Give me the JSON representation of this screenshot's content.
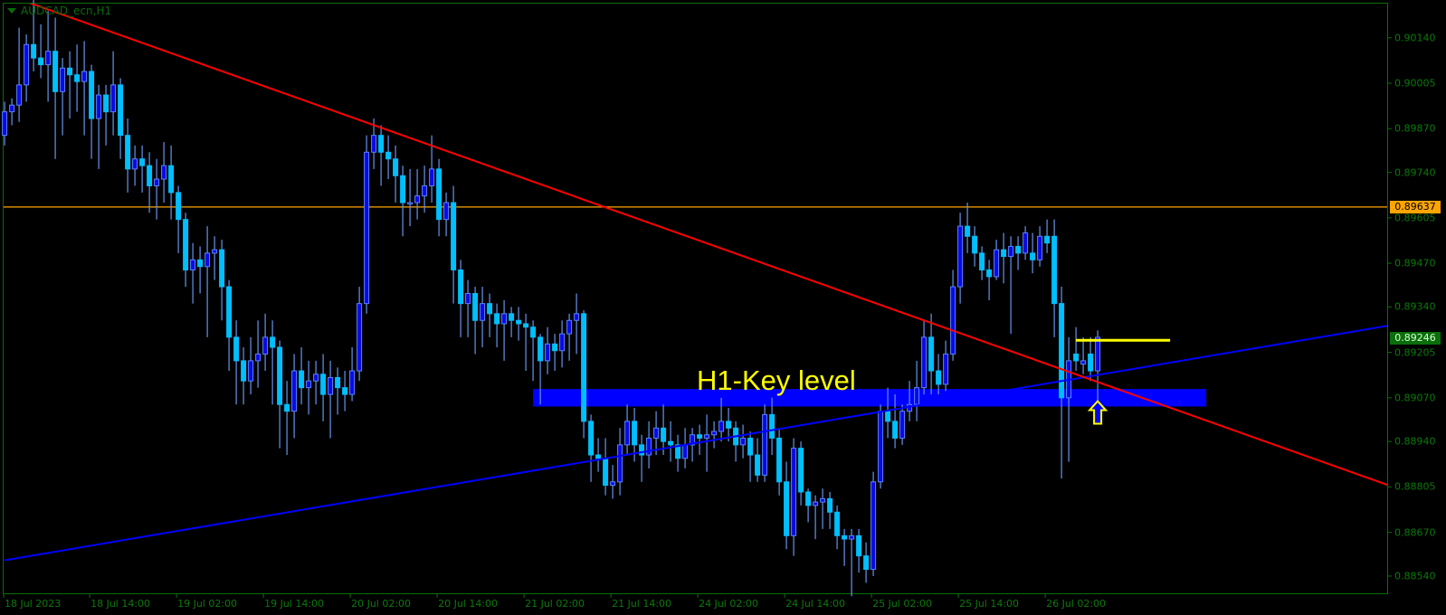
{
  "window": {
    "title": "AUDCAD_ecn,H1"
  },
  "colors": {
    "background": "#000000",
    "frame": "#0a6e0a",
    "axis_text": "#0b7a0b",
    "bull_body": "#0a0ae6",
    "bull_border": "#5a82ff",
    "bear_body": "#00bfff",
    "wick": "#6495ed",
    "resistance_line": "#ff0000",
    "support_line": "#0000ff",
    "key_zone": "#0000ff",
    "level_line": "#ffa500",
    "bid_label": "#0a6e0a",
    "annotation": "#ffff00"
  },
  "chart_data": {
    "type": "candlestick",
    "symbol": "AUDCAD_ecn",
    "timeframe": "H1",
    "ylim": [
      0.8852,
      0.9024
    ],
    "price_ticks": [
      "0.90140",
      "0.90005",
      "0.89870",
      "0.89740",
      "0.89605",
      "0.89470",
      "0.89340",
      "0.89205",
      "0.89070",
      "0.88940",
      "0.88805",
      "0.88670",
      "0.88540"
    ],
    "time_ticks": [
      "18 Jul 2023",
      "18 Jul 14:00",
      "19 Jul 02:00",
      "19 Jul 14:00",
      "20 Jul 02:00",
      "20 Jul 14:00",
      "21 Jul 02:00",
      "21 Jul 14:00",
      "24 Jul 02:00",
      "24 Jul 14:00",
      "25 Jul 02:00",
      "25 Jul 14:00",
      "26 Jul 02:00"
    ],
    "bars_per_time_tick": 12,
    "ohlc": [
      [
        0.8985,
        0.8995,
        0.8982,
        0.8992
      ],
      [
        0.8992,
        0.8996,
        0.8988,
        0.8994
      ],
      [
        0.8994,
        0.9017,
        0.8989,
        0.9
      ],
      [
        0.9,
        0.9015,
        0.8995,
        0.9012
      ],
      [
        0.9012,
        0.903,
        0.9004,
        0.9008
      ],
      [
        0.9008,
        0.9018,
        0.9002,
        0.9006
      ],
      [
        0.9006,
        0.9022,
        0.8995,
        0.901
      ],
      [
        0.901,
        0.902,
        0.8978,
        0.8998
      ],
      [
        0.8998,
        0.9008,
        0.8985,
        0.9005
      ],
      [
        0.9005,
        0.901,
        0.899,
        0.9003
      ],
      [
        0.9003,
        0.9012,
        0.8992,
        0.9001
      ],
      [
        0.9001,
        0.9013,
        0.8985,
        0.9004
      ],
      [
        0.9004,
        0.9006,
        0.8978,
        0.899
      ],
      [
        0.899,
        0.9,
        0.8975,
        0.8997
      ],
      [
        0.8997,
        0.9,
        0.8982,
        0.8992
      ],
      [
        0.8992,
        0.901,
        0.8985,
        0.9
      ],
      [
        0.9,
        0.9002,
        0.8978,
        0.8985
      ],
      [
        0.8985,
        0.899,
        0.8968,
        0.8975
      ],
      [
        0.8975,
        0.8982,
        0.897,
        0.8978
      ],
      [
        0.8978,
        0.8982,
        0.8968,
        0.8976
      ],
      [
        0.8976,
        0.898,
        0.8962,
        0.897
      ],
      [
        0.897,
        0.8978,
        0.896,
        0.8972
      ],
      [
        0.8972,
        0.8983,
        0.8965,
        0.8976
      ],
      [
        0.8976,
        0.8982,
        0.896,
        0.8968
      ],
      [
        0.8968,
        0.897,
        0.895,
        0.896
      ],
      [
        0.896,
        0.8962,
        0.894,
        0.8945
      ],
      [
        0.8945,
        0.8953,
        0.8935,
        0.8948
      ],
      [
        0.8948,
        0.8952,
        0.8938,
        0.8946
      ],
      [
        0.8946,
        0.8958,
        0.8925,
        0.895
      ],
      [
        0.895,
        0.8955,
        0.8942,
        0.8951
      ],
      [
        0.8951,
        0.8954,
        0.893,
        0.894
      ],
      [
        0.894,
        0.8942,
        0.8915,
        0.8925
      ],
      [
        0.8925,
        0.893,
        0.8905,
        0.8918
      ],
      [
        0.8918,
        0.8922,
        0.8905,
        0.8912
      ],
      [
        0.8912,
        0.8925,
        0.8908,
        0.8918
      ],
      [
        0.8918,
        0.893,
        0.891,
        0.892
      ],
      [
        0.892,
        0.8932,
        0.8915,
        0.8925
      ],
      [
        0.8925,
        0.893,
        0.8905,
        0.8922
      ],
      [
        0.8922,
        0.8924,
        0.8892,
        0.8905
      ],
      [
        0.8905,
        0.8912,
        0.889,
        0.8903
      ],
      [
        0.8903,
        0.892,
        0.8895,
        0.8915
      ],
      [
        0.8915,
        0.8922,
        0.8905,
        0.891
      ],
      [
        0.891,
        0.8918,
        0.8902,
        0.8912
      ],
      [
        0.8912,
        0.8918,
        0.8905,
        0.8914
      ],
      [
        0.8914,
        0.892,
        0.89,
        0.8908
      ],
      [
        0.8908,
        0.8918,
        0.8895,
        0.8913
      ],
      [
        0.8913,
        0.8916,
        0.8902,
        0.891
      ],
      [
        0.891,
        0.8915,
        0.8903,
        0.8908
      ],
      [
        0.8908,
        0.8922,
        0.8906,
        0.8915
      ],
      [
        0.8915,
        0.894,
        0.8912,
        0.8935
      ],
      [
        0.8935,
        0.8985,
        0.8932,
        0.898
      ],
      [
        0.898,
        0.899,
        0.8975,
        0.8985
      ],
      [
        0.8985,
        0.8988,
        0.897,
        0.898
      ],
      [
        0.898,
        0.8985,
        0.8972,
        0.8978
      ],
      [
        0.8978,
        0.8982,
        0.8965,
        0.8973
      ],
      [
        0.8973,
        0.8976,
        0.8955,
        0.8965
      ],
      [
        0.8965,
        0.8975,
        0.8958,
        0.8965
      ],
      [
        0.8965,
        0.8975,
        0.896,
        0.8967
      ],
      [
        0.8967,
        0.8976,
        0.8962,
        0.897
      ],
      [
        0.897,
        0.8985,
        0.8965,
        0.8975
      ],
      [
        0.8975,
        0.8978,
        0.8955,
        0.896
      ],
      [
        0.896,
        0.8968,
        0.8955,
        0.8965
      ],
      [
        0.8965,
        0.897,
        0.8935,
        0.8945
      ],
      [
        0.8945,
        0.8948,
        0.8925,
        0.8935
      ],
      [
        0.8935,
        0.8942,
        0.8925,
        0.8938
      ],
      [
        0.8938,
        0.894,
        0.892,
        0.893
      ],
      [
        0.893,
        0.894,
        0.8922,
        0.8935
      ],
      [
        0.8935,
        0.8938,
        0.8925,
        0.8932
      ],
      [
        0.8932,
        0.8935,
        0.8922,
        0.8929
      ],
      [
        0.8929,
        0.8936,
        0.8918,
        0.8932
      ],
      [
        0.8932,
        0.8934,
        0.8925,
        0.893
      ],
      [
        0.893,
        0.8934,
        0.8924,
        0.8929
      ],
      [
        0.8929,
        0.8932,
        0.8915,
        0.8928
      ],
      [
        0.8928,
        0.893,
        0.8912,
        0.8925
      ],
      [
        0.8925,
        0.8926,
        0.8905,
        0.8918
      ],
      [
        0.8918,
        0.8928,
        0.8914,
        0.8923
      ],
      [
        0.8923,
        0.8926,
        0.8915,
        0.8921
      ],
      [
        0.8921,
        0.893,
        0.8916,
        0.8926
      ],
      [
        0.8926,
        0.8932,
        0.8918,
        0.893
      ],
      [
        0.893,
        0.8938,
        0.892,
        0.8932
      ],
      [
        0.8932,
        0.8933,
        0.8895,
        0.89
      ],
      [
        0.89,
        0.8902,
        0.8882,
        0.889
      ],
      [
        0.889,
        0.8895,
        0.8885,
        0.8889
      ],
      [
        0.8889,
        0.8895,
        0.8878,
        0.8881
      ],
      [
        0.8881,
        0.8887,
        0.8877,
        0.8882
      ],
      [
        0.8882,
        0.8898,
        0.8878,
        0.8893
      ],
      [
        0.8893,
        0.8905,
        0.889,
        0.89
      ],
      [
        0.89,
        0.8904,
        0.8888,
        0.8893
      ],
      [
        0.8893,
        0.8896,
        0.8882,
        0.889
      ],
      [
        0.889,
        0.89,
        0.8886,
        0.8895
      ],
      [
        0.8895,
        0.8903,
        0.889,
        0.8898
      ],
      [
        0.8898,
        0.8905,
        0.889,
        0.8894
      ],
      [
        0.8894,
        0.89,
        0.8888,
        0.8893
      ],
      [
        0.8893,
        0.8896,
        0.8885,
        0.8889
      ],
      [
        0.8889,
        0.8898,
        0.8886,
        0.8893
      ],
      [
        0.8893,
        0.8898,
        0.8888,
        0.8896
      ],
      [
        0.8896,
        0.8899,
        0.889,
        0.8895
      ],
      [
        0.8895,
        0.8902,
        0.8885,
        0.8896
      ],
      [
        0.8896,
        0.89,
        0.8892,
        0.8897
      ],
      [
        0.8897,
        0.8907,
        0.8894,
        0.89
      ],
      [
        0.89,
        0.8904,
        0.8894,
        0.8898
      ],
      [
        0.8898,
        0.89,
        0.8888,
        0.8893
      ],
      [
        0.8893,
        0.8899,
        0.8889,
        0.8895
      ],
      [
        0.8895,
        0.8897,
        0.8882,
        0.889
      ],
      [
        0.889,
        0.8895,
        0.8882,
        0.8884
      ],
      [
        0.8884,
        0.8905,
        0.8882,
        0.8902
      ],
      [
        0.8902,
        0.8907,
        0.889,
        0.8895
      ],
      [
        0.8895,
        0.8898,
        0.8878,
        0.8882
      ],
      [
        0.8882,
        0.8888,
        0.8862,
        0.8866
      ],
      [
        0.8866,
        0.8895,
        0.886,
        0.8892
      ],
      [
        0.8892,
        0.8894,
        0.8875,
        0.8879
      ],
      [
        0.8879,
        0.888,
        0.887,
        0.8875
      ],
      [
        0.8875,
        0.8878,
        0.8865,
        0.8876
      ],
      [
        0.8876,
        0.888,
        0.8868,
        0.8877
      ],
      [
        0.8877,
        0.8879,
        0.8868,
        0.8873
      ],
      [
        0.8873,
        0.8875,
        0.8862,
        0.8866
      ],
      [
        0.8866,
        0.8868,
        0.8857,
        0.8865
      ],
      [
        0.8865,
        0.8868,
        0.8848,
        0.8866
      ],
      [
        0.8866,
        0.8868,
        0.8855,
        0.886
      ],
      [
        0.886,
        0.8864,
        0.8852,
        0.8856
      ],
      [
        0.8856,
        0.8885,
        0.8854,
        0.8882
      ],
      [
        0.8882,
        0.8905,
        0.888,
        0.8903
      ],
      [
        0.8903,
        0.891,
        0.8895,
        0.89
      ],
      [
        0.89,
        0.8908,
        0.8892,
        0.8895
      ],
      [
        0.8895,
        0.8905,
        0.8893,
        0.8903
      ],
      [
        0.8903,
        0.8912,
        0.89,
        0.8905
      ],
      [
        0.8905,
        0.8918,
        0.89,
        0.891
      ],
      [
        0.891,
        0.893,
        0.8908,
        0.8925
      ],
      [
        0.8925,
        0.8932,
        0.8908,
        0.8915
      ],
      [
        0.8915,
        0.892,
        0.8908,
        0.8911
      ],
      [
        0.8911,
        0.8924,
        0.8909,
        0.892
      ],
      [
        0.892,
        0.8945,
        0.8918,
        0.894
      ],
      [
        0.894,
        0.8962,
        0.8935,
        0.8958
      ],
      [
        0.8958,
        0.8965,
        0.895,
        0.8955
      ],
      [
        0.8955,
        0.8958,
        0.8946,
        0.895
      ],
      [
        0.895,
        0.8952,
        0.8942,
        0.8945
      ],
      [
        0.8945,
        0.8948,
        0.8936,
        0.8943
      ],
      [
        0.8943,
        0.8954,
        0.8942,
        0.8951
      ],
      [
        0.8951,
        0.8956,
        0.8941,
        0.8949
      ],
      [
        0.8949,
        0.8955,
        0.8926,
        0.8952
      ],
      [
        0.8952,
        0.8955,
        0.8945,
        0.895
      ],
      [
        0.895,
        0.8958,
        0.8948,
        0.8956
      ],
      [
        0.895,
        0.8956,
        0.8944,
        0.8948
      ],
      [
        0.8948,
        0.8958,
        0.8946,
        0.8955
      ],
      [
        0.8955,
        0.896,
        0.895,
        0.8953
      ],
      [
        0.8955,
        0.896,
        0.8925,
        0.8935
      ],
      [
        0.8935,
        0.894,
        0.8883,
        0.8907
      ],
      [
        0.8907,
        0.8925,
        0.8888,
        0.8918
      ],
      [
        0.892,
        0.8928,
        0.8915,
        0.8918
      ],
      [
        0.8917,
        0.8925,
        0.8914,
        0.8918
      ],
      [
        0.892,
        0.8925,
        0.8912,
        0.8915
      ],
      [
        0.8915,
        0.8927,
        0.8905,
        0.8925
      ]
    ],
    "horizontal_level": {
      "price": 0.89637,
      "label": "0.89637"
    },
    "bid": {
      "price": 0.89246,
      "label": "0.89246"
    },
    "resistance_trendline": {
      "start": {
        "bar": 3.4,
        "price": 0.90244
      },
      "end": {
        "bar": 191.3,
        "price": 0.88809
      }
    },
    "support_trendline": {
      "start": {
        "bar": 0,
        "price": 0.88587
      },
      "end": {
        "bar": 191.3,
        "price": 0.89285
      }
    },
    "key_zone": {
      "start_bar": 73,
      "end_bar": 166,
      "top": 0.89096,
      "bottom": 0.89044,
      "label": "H1-Key level"
    },
    "entry_line": {
      "price": 0.89241,
      "start_bar": 148,
      "end_bar": 161
    },
    "arrow": {
      "bar": 151,
      "price": 0.8906,
      "direction": "up"
    }
  }
}
